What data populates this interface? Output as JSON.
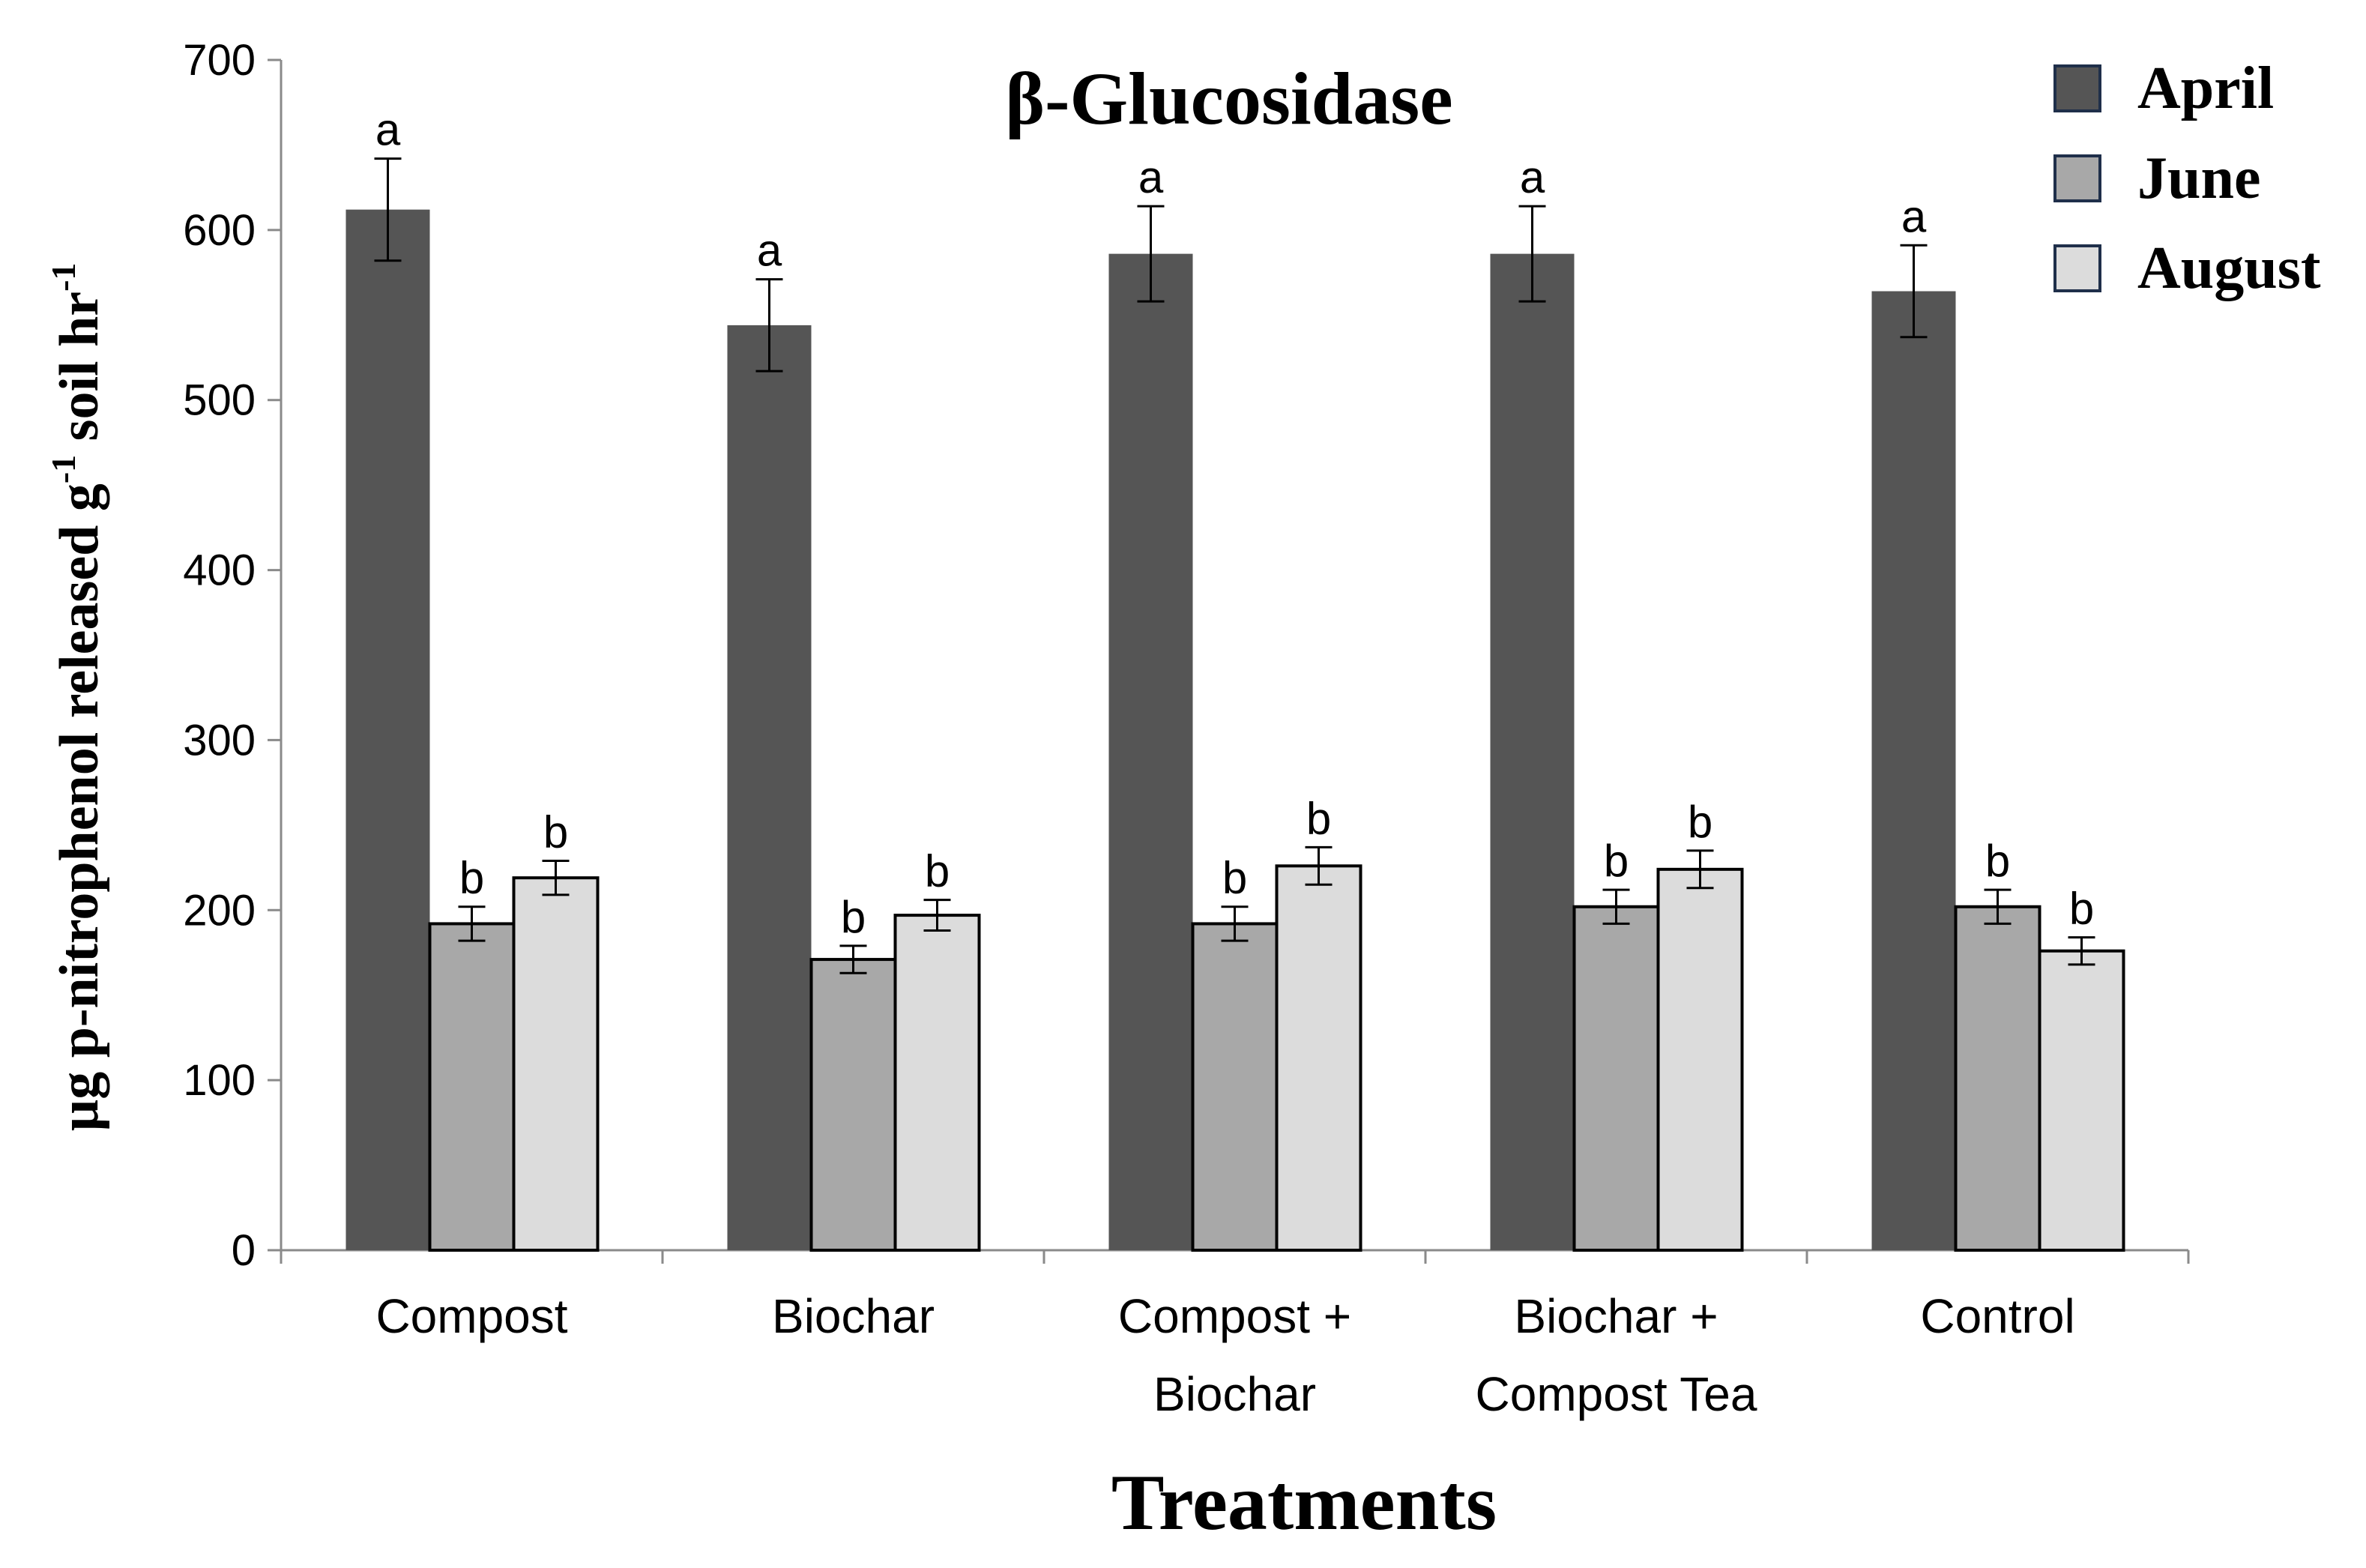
{
  "chart_data": {
    "type": "bar",
    "title": "β-Glucosidase",
    "xlabel": "Treatments",
    "ylabel_main": "µg p-nitrophenol released g",
    "ylabel_sup1": "-1",
    "ylabel_mid": " soil hr",
    "ylabel_sup2": "-1",
    "ylim": [
      0,
      700
    ],
    "yticks": [
      0,
      100,
      200,
      300,
      400,
      500,
      600,
      700
    ],
    "legend_position": "top-right",
    "categories": [
      [
        "Compost"
      ],
      [
        "Biochar"
      ],
      [
        "Compost +",
        "Biochar"
      ],
      [
        "Biochar +",
        "Compost Tea"
      ],
      [
        "Control"
      ]
    ],
    "series": [
      {
        "name": "April",
        "color": "#555555",
        "values": [
          612,
          544,
          586,
          586,
          564
        ],
        "errors": [
          30,
          27,
          28,
          28,
          27
        ],
        "letters": [
          "a",
          "a",
          "a",
          "a",
          "a"
        ]
      },
      {
        "name": "June",
        "color": "#a8a8a8",
        "values": [
          192,
          171,
          192,
          202,
          202
        ],
        "errors": [
          10,
          8,
          10,
          10,
          10
        ],
        "letters": [
          "b",
          "b",
          "b",
          "b",
          "b"
        ]
      },
      {
        "name": "August",
        "color": "#dcdcdc",
        "values": [
          219,
          197,
          226,
          224,
          176
        ],
        "errors": [
          10,
          9,
          11,
          11,
          8
        ],
        "letters": [
          "b",
          "b",
          "b",
          "b",
          "b"
        ]
      }
    ]
  }
}
